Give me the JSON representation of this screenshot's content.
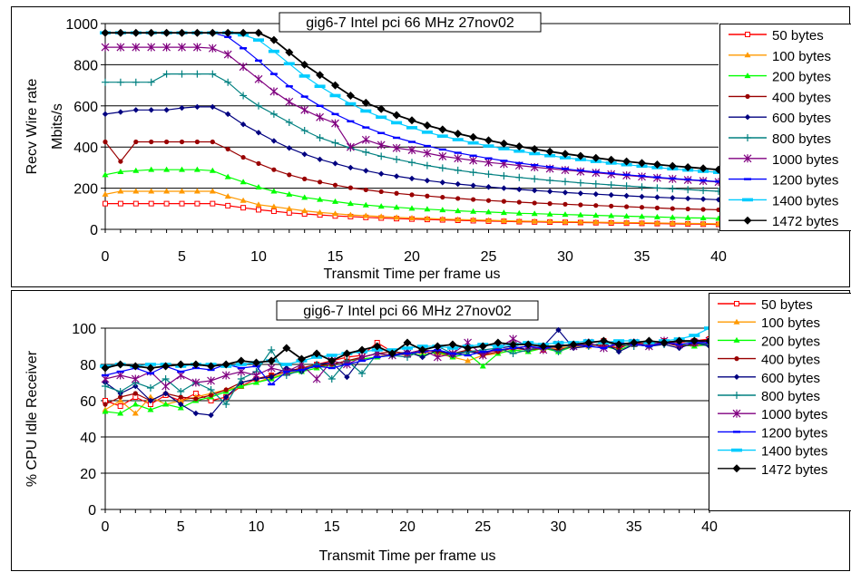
{
  "chart_data": [
    {
      "type": "line",
      "title": "gig6-7 Intel pci 66 MHz 27nov02",
      "xlabel": "Transmit Time per frame us",
      "ylabel": [
        "Recv Wire rate",
        "Mbits/s"
      ],
      "xlim": [
        0,
        40
      ],
      "ylim": [
        0,
        1000
      ],
      "xticks": [
        0,
        5,
        10,
        15,
        20,
        25,
        30,
        35,
        40
      ],
      "yticks": [
        0,
        200,
        400,
        600,
        800,
        1000
      ],
      "grid": "horizontal",
      "legend_position": "right",
      "x": [
        0,
        1,
        2,
        3,
        4,
        5,
        6,
        7,
        8,
        9,
        10,
        11,
        12,
        13,
        14,
        15,
        16,
        17,
        18,
        19,
        20,
        21,
        22,
        23,
        24,
        25,
        26,
        27,
        28,
        29,
        30,
        31,
        32,
        33,
        34,
        35,
        36,
        37,
        38,
        39,
        40
      ],
      "series": [
        {
          "name": "50 bytes",
          "color": "#FF0000",
          "marker": "square-open",
          "values": [
            125,
            125,
            125,
            125,
            125,
            125,
            125,
            125,
            115,
            105,
            95,
            88,
            80,
            75,
            70,
            65,
            62,
            58,
            55,
            52,
            50,
            48,
            46,
            44,
            42,
            40,
            39,
            37,
            36,
            35,
            34,
            33,
            32,
            31,
            30,
            29,
            28,
            27,
            26,
            25,
            24
          ]
        },
        {
          "name": "100 bytes",
          "color": "#FF9900",
          "marker": "triangle",
          "values": [
            170,
            185,
            185,
            185,
            185,
            185,
            185,
            185,
            160,
            140,
            120,
            110,
            100,
            90,
            82,
            76,
            70,
            66,
            62,
            58,
            55,
            53,
            50,
            48,
            46,
            44,
            42,
            40,
            39,
            38,
            37,
            36,
            35,
            34,
            33,
            32,
            31,
            30,
            29,
            28,
            27
          ]
        },
        {
          "name": "200 bytes",
          "color": "#00FF00",
          "marker": "triangle",
          "values": [
            265,
            280,
            285,
            290,
            290,
            290,
            290,
            285,
            255,
            230,
            205,
            185,
            170,
            155,
            145,
            135,
            125,
            118,
            112,
            107,
            102,
            98,
            94,
            90,
            87,
            84,
            81,
            78,
            76,
            74,
            72,
            70,
            68,
            66,
            64,
            62,
            60,
            58,
            56,
            55,
            53
          ]
        },
        {
          "name": "400 bytes",
          "color": "#990000",
          "marker": "circle",
          "values": [
            425,
            330,
            425,
            425,
            425,
            425,
            425,
            425,
            390,
            350,
            320,
            290,
            265,
            245,
            230,
            215,
            202,
            192,
            183,
            175,
            168,
            162,
            156,
            150,
            145,
            140,
            136,
            132,
            128,
            125,
            122,
            119,
            116,
            113,
            110,
            107,
            104,
            101,
            99,
            97,
            95
          ]
        },
        {
          "name": "600 bytes",
          "color": "#000080",
          "marker": "diamond",
          "values": [
            560,
            570,
            580,
            580,
            580,
            590,
            595,
            595,
            560,
            510,
            470,
            430,
            395,
            365,
            340,
            320,
            300,
            285,
            270,
            258,
            247,
            237,
            228,
            220,
            213,
            206,
            200,
            194,
            189,
            184,
            179,
            175,
            171,
            167,
            163,
            159,
            156,
            153,
            150,
            147,
            144
          ]
        },
        {
          "name": "800 bytes",
          "color": "#008080",
          "marker": "plus",
          "values": [
            715,
            715,
            715,
            715,
            755,
            755,
            755,
            755,
            715,
            650,
            600,
            560,
            520,
            480,
            445,
            420,
            395,
            375,
            355,
            340,
            325,
            310,
            298,
            287,
            277,
            268,
            260,
            252,
            245,
            238,
            232,
            226,
            221,
            216,
            211,
            206,
            201,
            197,
            193,
            189,
            185
          ]
        },
        {
          "name": "1000 bytes",
          "color": "#800080",
          "marker": "asterisk",
          "values": [
            885,
            885,
            885,
            885,
            885,
            885,
            885,
            880,
            850,
            790,
            730,
            670,
            620,
            580,
            545,
            515,
            400,
            435,
            410,
            395,
            385,
            370,
            355,
            345,
            335,
            325,
            318,
            310,
            302,
            295,
            288,
            281,
            275,
            268,
            262,
            256,
            250,
            245,
            240,
            235,
            230
          ]
        },
        {
          "name": "1200 bytes",
          "color": "#0000FF",
          "marker": "dash",
          "values": [
            955,
            955,
            955,
            955,
            955,
            955,
            955,
            955,
            935,
            880,
            820,
            755,
            695,
            645,
            600,
            560,
            525,
            495,
            468,
            445,
            425,
            405,
            388,
            372,
            358,
            345,
            333,
            322,
            312,
            303,
            294,
            286,
            279,
            272,
            265,
            259,
            253,
            247,
            242,
            237,
            232
          ]
        },
        {
          "name": "1400 bytes",
          "color": "#00CCFF",
          "marker": "dash-thick",
          "values": [
            955,
            955,
            955,
            955,
            955,
            955,
            955,
            955,
            955,
            945,
            920,
            865,
            805,
            745,
            695,
            650,
            610,
            575,
            545,
            518,
            494,
            472,
            453,
            436,
            420,
            405,
            392,
            380,
            368,
            358,
            348,
            339,
            330,
            322,
            314,
            307,
            300,
            294,
            288,
            282,
            277
          ]
        },
        {
          "name": "1472 bytes",
          "color": "#000000",
          "marker": "diamond-large",
          "values": [
            955,
            955,
            955,
            955,
            955,
            955,
            955,
            955,
            955,
            955,
            955,
            920,
            860,
            800,
            750,
            700,
            650,
            615,
            585,
            555,
            530,
            505,
            485,
            465,
            448,
            432,
            417,
            403,
            390,
            378,
            367,
            357,
            347,
            338,
            330,
            322,
            315,
            308,
            302,
            296,
            290
          ]
        }
      ]
    },
    {
      "type": "line",
      "title": "gig6-7 Intel pci 66 MHz 27nov02",
      "xlabel": "Transmit Time per frame us",
      "ylabel": [
        "% CPU Idle Receiver"
      ],
      "xlim": [
        0,
        40
      ],
      "ylim": [
        0,
        100
      ],
      "xticks": [
        0,
        5,
        10,
        15,
        20,
        25,
        30,
        35,
        40
      ],
      "yticks": [
        0,
        20,
        40,
        60,
        80,
        100
      ],
      "grid": "horizontal",
      "legend_position": "right",
      "x": [
        0,
        1,
        2,
        3,
        4,
        5,
        6,
        7,
        8,
        9,
        10,
        11,
        12,
        13,
        14,
        15,
        16,
        17,
        18,
        19,
        20,
        21,
        22,
        23,
        24,
        25,
        26,
        27,
        28,
        29,
        30,
        31,
        32,
        33,
        34,
        35,
        36,
        37,
        38,
        39,
        40
      ],
      "series": [
        {
          "name": "50 bytes",
          "color": "#FF0000",
          "marker": "square-open",
          "values": [
            60,
            57,
            62,
            58,
            63,
            60,
            64,
            60,
            62,
            68,
            72,
            74,
            76,
            78,
            80,
            82,
            84,
            85,
            92,
            87,
            86,
            88,
            87,
            85,
            88,
            86,
            88,
            89,
            90,
            88,
            90,
            91,
            92,
            93,
            90,
            91,
            92,
            93,
            92,
            93,
            94
          ]
        },
        {
          "name": "100 bytes",
          "color": "#FF9900",
          "marker": "triangle",
          "values": [
            55,
            60,
            53,
            62,
            58,
            60,
            62,
            64,
            66,
            68,
            70,
            73,
            75,
            77,
            79,
            80,
            82,
            83,
            84,
            86,
            85,
            87,
            86,
            84,
            82,
            85,
            86,
            88,
            87,
            89,
            89,
            90,
            90,
            91,
            89,
            92,
            91,
            92,
            91,
            90,
            92
          ]
        },
        {
          "name": "200 bytes",
          "color": "#00FF00",
          "marker": "triangle",
          "values": [
            54,
            53,
            58,
            55,
            58,
            56,
            60,
            62,
            65,
            68,
            70,
            72,
            75,
            76,
            78,
            80,
            82,
            83,
            84,
            85,
            86,
            85,
            87,
            84,
            86,
            79,
            86,
            88,
            87,
            89,
            87,
            90,
            91,
            90,
            88,
            91,
            90,
            92,
            91,
            90,
            91
          ]
        },
        {
          "name": "400 bytes",
          "color": "#990000",
          "marker": "circle",
          "values": [
            58,
            62,
            64,
            60,
            64,
            62,
            61,
            63,
            66,
            70,
            72,
            74,
            76,
            78,
            79,
            80,
            82,
            84,
            86,
            87,
            86,
            88,
            87,
            86,
            88,
            85,
            87,
            89,
            88,
            89,
            88,
            90,
            91,
            90,
            89,
            92,
            91,
            92,
            90,
            91,
            92
          ]
        },
        {
          "name": "600 bytes",
          "color": "#000080",
          "marker": "diamond",
          "values": [
            70,
            64,
            68,
            60,
            64,
            58,
            53,
            52,
            62,
            70,
            72,
            73,
            78,
            76,
            80,
            81,
            73,
            84,
            86,
            85,
            87,
            84,
            88,
            85,
            87,
            86,
            89,
            90,
            88,
            90,
            99,
            89,
            90,
            92,
            87,
            91,
            90,
            91,
            89,
            92,
            90
          ]
        },
        {
          "name": "800 bytes",
          "color": "#008080",
          "marker": "plus",
          "values": [
            68,
            65,
            70,
            67,
            72,
            65,
            70,
            66,
            58,
            72,
            76,
            88,
            74,
            77,
            80,
            72,
            82,
            75,
            86,
            85,
            84,
            88,
            90,
            86,
            87,
            88,
            89,
            86,
            88,
            90,
            87,
            91,
            90,
            92,
            91,
            90,
            92,
            91,
            93,
            92,
            91
          ]
        },
        {
          "name": "1000 bytes",
          "color": "#800080",
          "marker": "asterisk",
          "values": [
            72,
            74,
            72,
            76,
            68,
            74,
            70,
            71,
            74,
            76,
            74,
            78,
            76,
            80,
            72,
            82,
            80,
            84,
            86,
            85,
            86,
            88,
            84,
            86,
            92,
            85,
            89,
            94,
            90,
            88,
            91,
            90,
            92,
            89,
            91,
            92,
            90,
            93,
            91,
            92,
            93
          ]
        },
        {
          "name": "1200 bytes",
          "color": "#0000FF",
          "marker": "dash",
          "values": [
            74,
            76,
            78,
            75,
            79,
            76,
            78,
            77,
            80,
            78,
            79,
            69,
            76,
            77,
            79,
            78,
            80,
            82,
            84,
            85,
            86,
            87,
            88,
            86,
            85,
            87,
            88,
            89,
            90,
            89,
            90,
            91,
            90,
            89,
            92,
            91,
            90,
            92,
            91,
            92,
            92
          ]
        },
        {
          "name": "1400 bytes",
          "color": "#00CCFF",
          "marker": "dash-thick",
          "values": [
            79,
            80,
            79,
            80,
            80,
            79,
            80,
            80,
            79,
            80,
            81,
            82,
            80,
            82,
            84,
            85,
            86,
            87,
            88,
            88,
            89,
            90,
            90,
            89,
            90,
            91,
            90,
            91,
            92,
            91,
            92,
            92,
            93,
            92,
            93,
            93,
            92,
            93,
            94,
            96,
            100
          ]
        },
        {
          "name": "1472 bytes",
          "color": "#000000",
          "marker": "diamond-large",
          "values": [
            78,
            80,
            79,
            78,
            79,
            80,
            80,
            79,
            80,
            82,
            81,
            82,
            89,
            83,
            86,
            82,
            86,
            88,
            90,
            86,
            92,
            88,
            90,
            91,
            89,
            90,
            92,
            91,
            91,
            90,
            90,
            91,
            92,
            93,
            91,
            92,
            93,
            92,
            93,
            93,
            93
          ]
        }
      ]
    }
  ]
}
